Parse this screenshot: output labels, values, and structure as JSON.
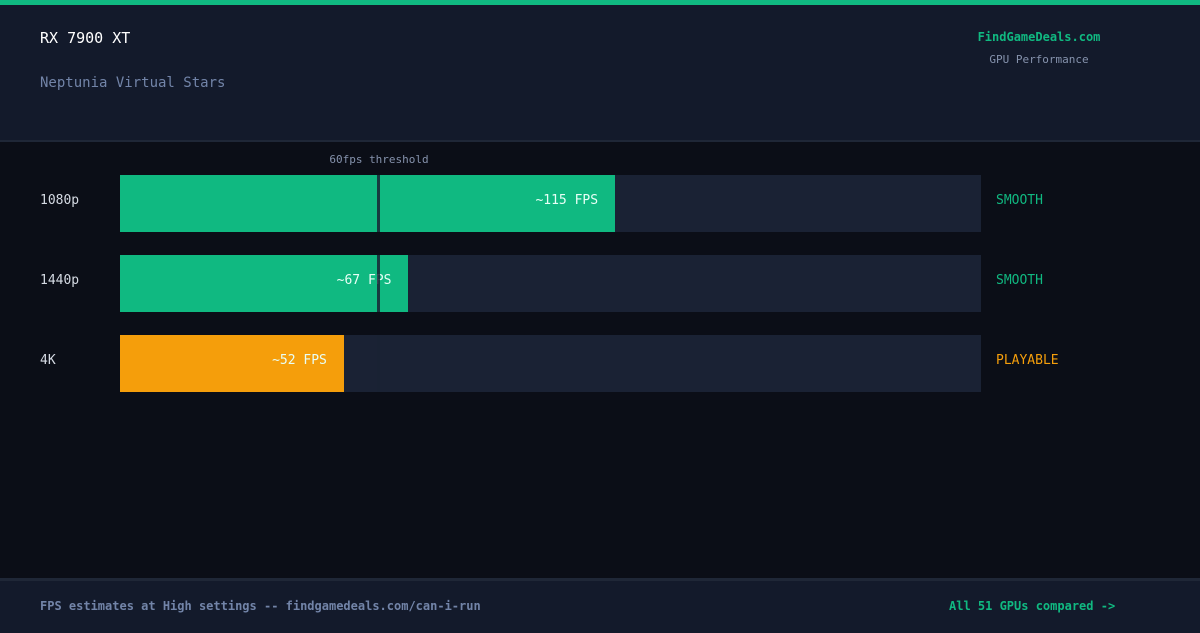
{
  "header": {
    "gpu": "RX 7900 XT",
    "game": "Neptunia Virtual Stars",
    "brand": "FindGameDeals.com",
    "brand_sub": "GPU Performance"
  },
  "chart_data": {
    "type": "bar",
    "orientation": "horizontal",
    "xlim": [
      0,
      200
    ],
    "threshold": {
      "value": 60,
      "label": "60fps threshold"
    },
    "categories": [
      "1080p",
      "1440p",
      "4K"
    ],
    "values": [
      115,
      67,
      52
    ],
    "value_labels": [
      "~115 FPS",
      "~67 FPS",
      "~52 FPS"
    ],
    "statuses": [
      "SMOOTH",
      "SMOOTH",
      "PLAYABLE"
    ],
    "colors": [
      "#10b981",
      "#10b981",
      "#f59e0b"
    ],
    "grid": false,
    "legend": "none"
  },
  "colors": {
    "accent": "#10b981",
    "warning": "#f59e0b",
    "background": "#0b0e17",
    "panel": "#131a2b",
    "track": "#1a2234"
  },
  "footer": {
    "note": "FPS estimates at High settings -- findgamedeals.com/can-i-run",
    "link": "All 51 GPUs compared ->"
  }
}
